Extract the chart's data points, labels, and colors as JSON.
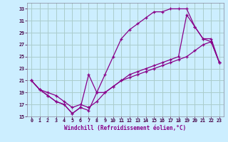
{
  "bg_color": "#cceeff",
  "grid_color": "#aacccc",
  "line_color": "#880088",
  "marker": "+",
  "xlabel": "Windchill (Refroidissement éolien,°C)",
  "xlim": [
    -0.5,
    23.5
  ],
  "ylim": [
    15,
    34
  ],
  "yticks": [
    15,
    17,
    19,
    21,
    23,
    25,
    27,
    29,
    31,
    33
  ],
  "xticks": [
    0,
    1,
    2,
    3,
    4,
    5,
    6,
    7,
    8,
    9,
    10,
    11,
    12,
    13,
    14,
    15,
    16,
    17,
    18,
    19,
    20,
    21,
    22,
    23
  ],
  "line1_x": [
    0,
    1,
    2,
    3,
    4,
    5,
    6,
    7,
    8,
    9,
    10,
    11,
    12,
    13,
    14,
    15,
    16,
    17,
    18,
    19,
    20,
    21,
    22,
    23
  ],
  "line1_y": [
    21,
    19.5,
    18.5,
    17.5,
    17,
    15.5,
    16.5,
    22,
    19,
    19,
    20,
    21,
    22,
    22.5,
    23,
    23.5,
    24,
    24.5,
    25,
    32,
    30,
    28,
    28,
    24
  ],
  "line2_x": [
    0,
    1,
    2,
    3,
    4,
    5,
    6,
    7,
    8,
    9,
    10,
    11,
    12,
    13,
    14,
    15,
    16,
    17,
    18,
    19,
    20,
    21,
    22,
    23
  ],
  "line2_y": [
    21,
    19.5,
    18.5,
    17.5,
    17,
    15.5,
    16.5,
    16,
    19,
    22,
    25,
    28,
    29.5,
    30.5,
    31.5,
    32.5,
    32.5,
    33,
    33,
    33,
    30,
    28,
    27.5,
    24
  ],
  "line3_x": [
    0,
    1,
    2,
    3,
    4,
    5,
    6,
    7,
    8,
    9,
    10,
    11,
    12,
    13,
    14,
    15,
    16,
    17,
    18,
    19,
    20,
    21,
    22,
    23
  ],
  "line3_y": [
    21,
    19.5,
    19,
    18.5,
    17.5,
    16.5,
    17,
    16.5,
    17.5,
    19,
    20,
    21,
    21.5,
    22,
    22.5,
    23,
    23.5,
    24,
    24.5,
    25,
    26,
    27,
    27.5,
    24
  ]
}
